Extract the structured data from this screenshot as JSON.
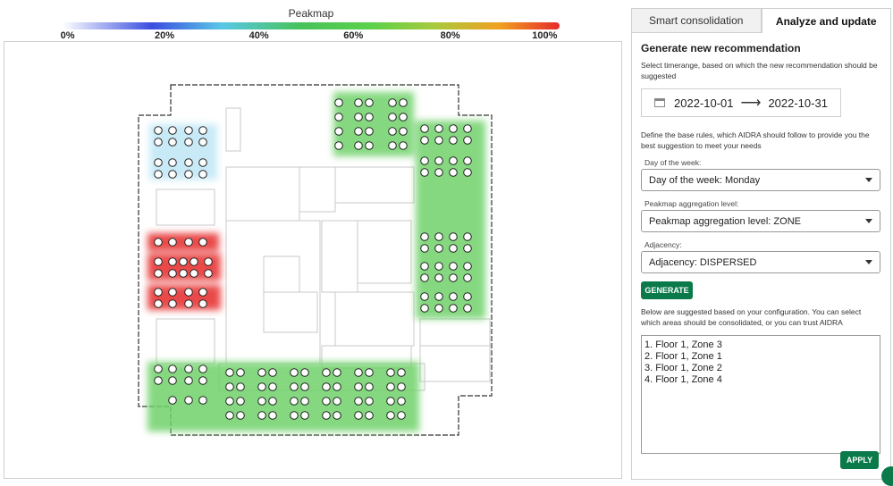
{
  "legend": {
    "title": "Peakmap",
    "ticks": [
      "0%",
      "20%",
      "40%",
      "60%",
      "80%",
      "100%"
    ]
  },
  "tabs": [
    {
      "label": "Smart consolidation",
      "active": false
    },
    {
      "label": "Analyze and update",
      "active": true
    }
  ],
  "panel": {
    "heading": "Generate new recommendation",
    "timerange_text": "Select timerange, based on which the new recommendation should be suggested",
    "date_from": "2022-10-01",
    "date_to": "2022-10-31",
    "rules_text": "Define the base rules, which AIDRA should follow to provide you the best suggestion to meet your needs",
    "fields": [
      {
        "label": "Day of the week:",
        "value": "Day of the week: Monday"
      },
      {
        "label": "Peakmap aggregation level:",
        "value": "Peakmap aggregation level: ZONE"
      },
      {
        "label": "Adjacency:",
        "value": "Adjacency: DISPERSED"
      }
    ],
    "generate_label": "GENERATE",
    "suggest_text": "Below are suggested based on your configuration. You can select which areas should be consolidated, or you can trust AIDRA",
    "results": [
      "1. Floor 1, Zone 3",
      "2. Floor 1, Zone 1",
      "3. Floor 1, Zone 2",
      "4. Floor 1, Zone 4"
    ],
    "apply_label": "APPLY"
  },
  "colors": {
    "accent": "#0b7a4b",
    "heat_green": "#4cc25a",
    "heat_red": "#e62b2b",
    "heat_blue": "#6cc6e8"
  }
}
